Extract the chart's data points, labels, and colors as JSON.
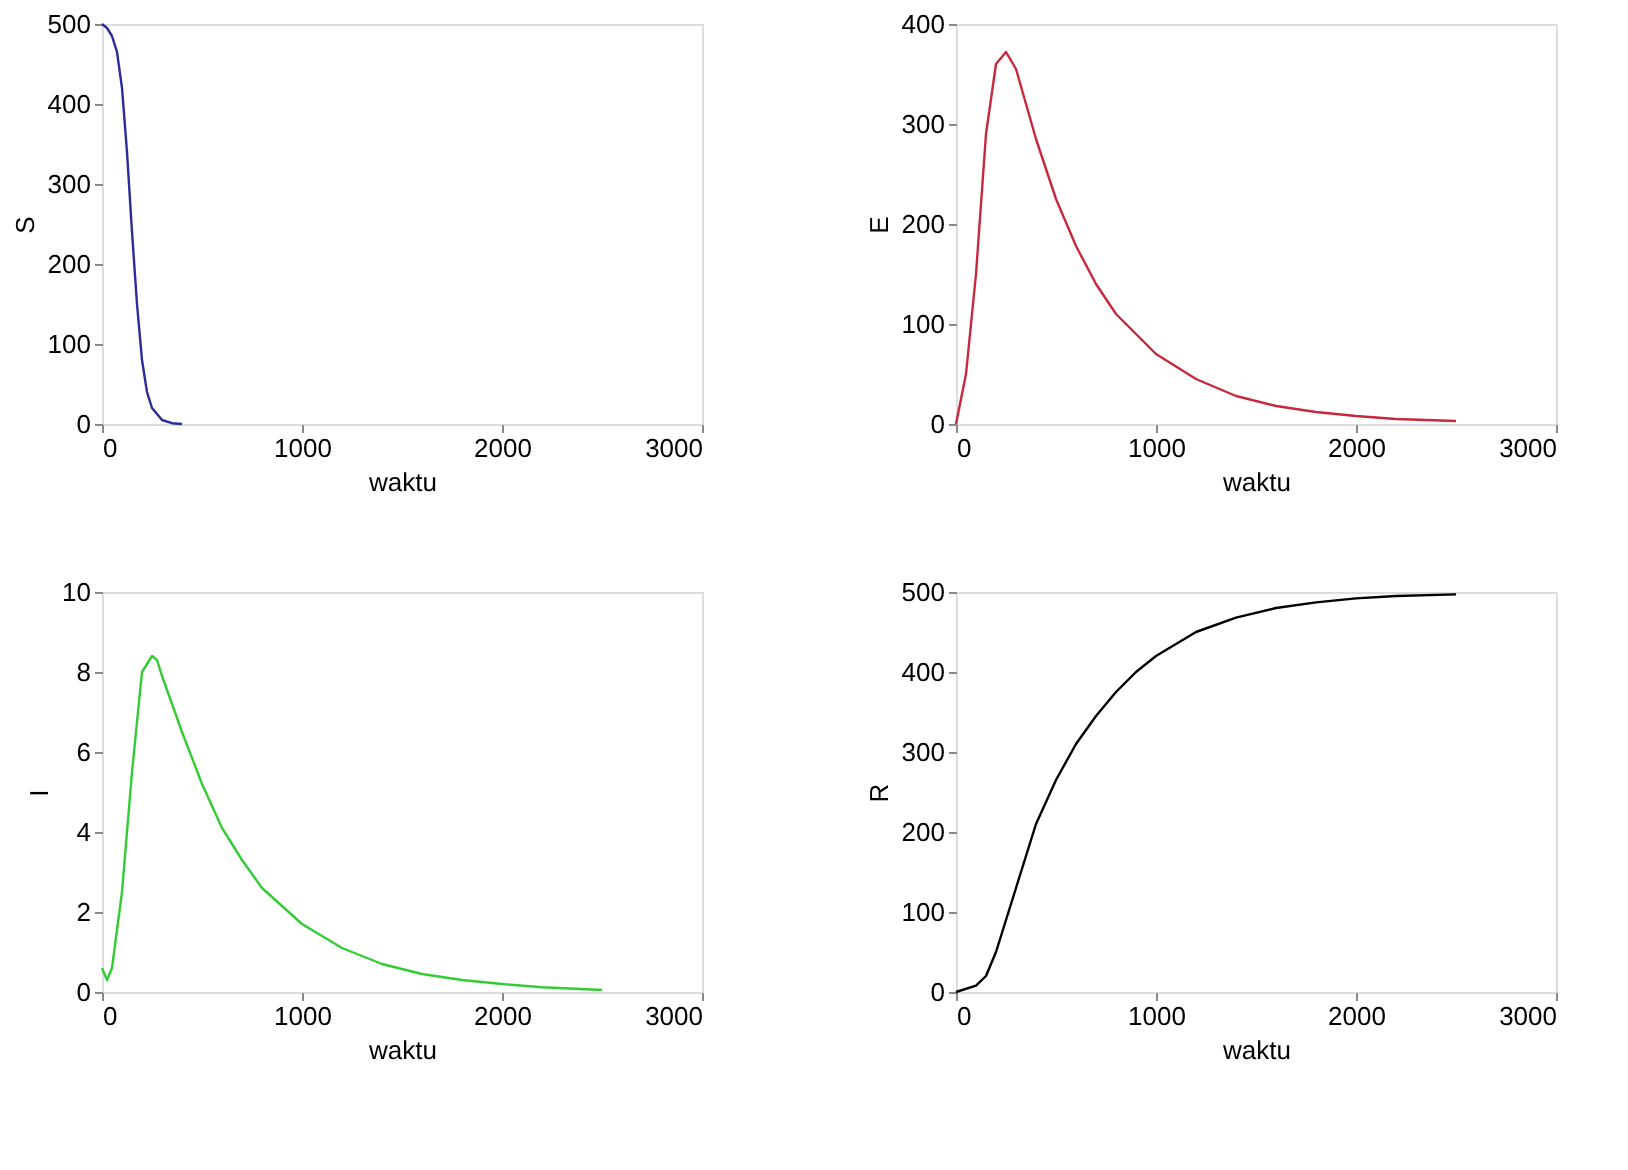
{
  "chart_data": [
    {
      "type": "line",
      "xlabel": "waktu",
      "ylabel": "S",
      "xlim": [
        0,
        3000
      ],
      "xticks": [
        0,
        1000,
        2000,
        3000
      ],
      "ylim": [
        0,
        500
      ],
      "yticks": [
        0,
        100,
        200,
        300,
        400,
        500
      ],
      "grid": false,
      "series": [
        {
          "color": "#2b2b9a",
          "x": [
            0,
            25,
            50,
            75,
            100,
            125,
            150,
            175,
            200,
            225,
            250,
            300,
            350,
            400
          ],
          "values": [
            500,
            495,
            485,
            465,
            420,
            340,
            240,
            150,
            80,
            40,
            20,
            5,
            1,
            0
          ]
        }
      ]
    },
    {
      "type": "line",
      "xlabel": "waktu",
      "ylabel": "E",
      "xlim": [
        0,
        3000
      ],
      "xticks": [
        0,
        1000,
        2000,
        3000
      ],
      "ylim": [
        0,
        400
      ],
      "yticks": [
        0,
        100,
        200,
        300,
        400
      ],
      "grid": false,
      "series": [
        {
          "color": "#c8283c",
          "x": [
            0,
            50,
            100,
            150,
            200,
            250,
            300,
            350,
            400,
            500,
            600,
            700,
            800,
            1000,
            1200,
            1400,
            1600,
            1800,
            2000,
            2200,
            2500
          ],
          "values": [
            0,
            50,
            150,
            290,
            360,
            372,
            355,
            320,
            285,
            225,
            178,
            140,
            110,
            70,
            45,
            28,
            18,
            12,
            8,
            5,
            3
          ]
        }
      ]
    },
    {
      "type": "line",
      "xlabel": "waktu",
      "ylabel": "I",
      "xlim": [
        0,
        3000
      ],
      "xticks": [
        0,
        1000,
        2000,
        3000
      ],
      "ylim": [
        0,
        10
      ],
      "yticks": [
        0,
        2,
        4,
        6,
        8,
        10
      ],
      "grid": false,
      "series": [
        {
          "color": "#33cc33",
          "x": [
            0,
            25,
            50,
            100,
            150,
            200,
            250,
            275,
            300,
            350,
            400,
            500,
            600,
            700,
            800,
            1000,
            1200,
            1400,
            1600,
            1800,
            2000,
            2200,
            2500
          ],
          "values": [
            0.6,
            0.3,
            0.6,
            2.5,
            5.5,
            8,
            8.4,
            8.3,
            7.9,
            7.2,
            6.5,
            5.2,
            4.1,
            3.3,
            2.6,
            1.7,
            1.1,
            0.7,
            0.45,
            0.3,
            0.2,
            0.12,
            0.05
          ]
        }
      ]
    },
    {
      "type": "line",
      "xlabel": "waktu",
      "ylabel": "R",
      "xlim": [
        0,
        3000
      ],
      "xticks": [
        0,
        1000,
        2000,
        3000
      ],
      "ylim": [
        0,
        500
      ],
      "yticks": [
        0,
        100,
        200,
        300,
        400,
        500
      ],
      "grid": false,
      "series": [
        {
          "color": "#000000",
          "x": [
            0,
            100,
            150,
            200,
            250,
            300,
            400,
            500,
            600,
            700,
            800,
            900,
            1000,
            1200,
            1400,
            1600,
            1800,
            2000,
            2200,
            2500
          ],
          "values": [
            0,
            8,
            20,
            50,
            90,
            130,
            210,
            265,
            310,
            345,
            375,
            400,
            420,
            450,
            468,
            480,
            487,
            492,
            495,
            497
          ]
        }
      ]
    }
  ]
}
